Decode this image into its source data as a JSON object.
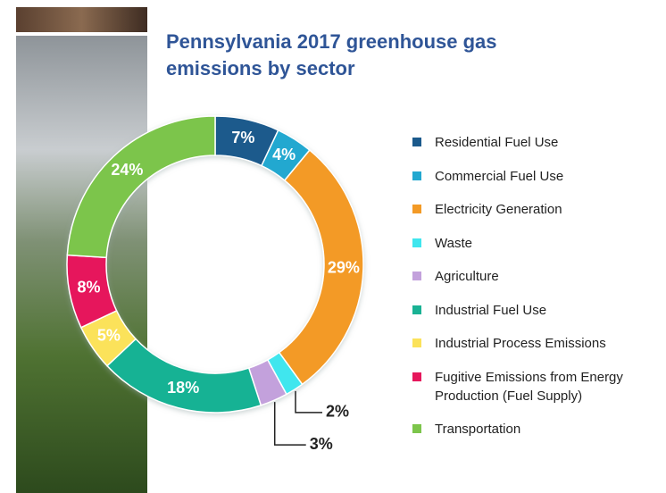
{
  "chart_data": {
    "type": "pie",
    "title": "Pennsylvania 2017 greenhouse gas emissions by sector",
    "categories": [
      "Residential Fuel Use",
      "Commercial Fuel Use",
      "Electricity Generation",
      "Waste",
      "Agriculture",
      "Industrial Fuel Use",
      "Industrial Process Emissions",
      "Fugitive Emissions from Energy Production (Fuel Supply)",
      "Transportation"
    ],
    "values": [
      7,
      4,
      29,
      2,
      3,
      18,
      5,
      8,
      24
    ],
    "value_labels": [
      "7%",
      "4%",
      "29%",
      "2%",
      "3%",
      "18%",
      "5%",
      "8%",
      "24%"
    ],
    "colors": [
      "#1b5a8c",
      "#22a8d0",
      "#f39a26",
      "#3fe6ee",
      "#c3a1dc",
      "#19b294",
      "#fbe25a",
      "#e6175c",
      "#7cc54b"
    ],
    "donut": true,
    "legend": "right"
  }
}
